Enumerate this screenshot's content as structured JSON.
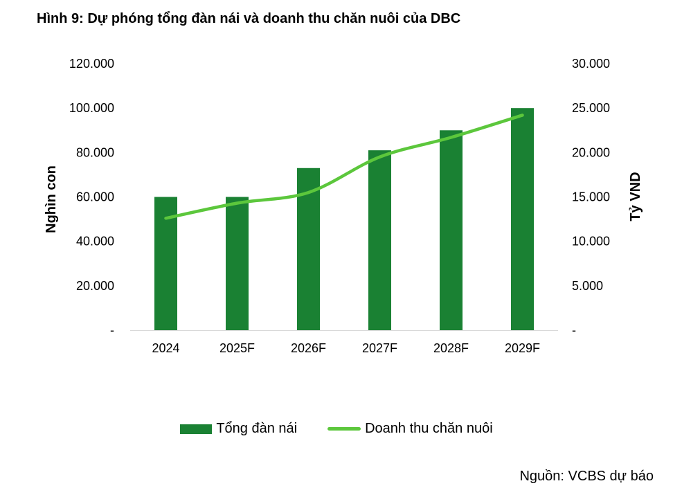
{
  "title": "Hình 9: Dự phóng tổng đàn nái và doanh thu chăn nuôi của DBC",
  "source": "Nguồn: VCBS dự báo",
  "colors": {
    "bar": "#1a8133",
    "line": "#5cc73c",
    "text": "#000000"
  },
  "chart_data": {
    "type": "bar",
    "categories": [
      "2024",
      "2025F",
      "2026F",
      "2027F",
      "2028F",
      "2029F"
    ],
    "series": [
      {
        "name": "Tổng đàn nái",
        "type": "bar",
        "axis": "left",
        "values": [
          60000,
          60000,
          73000,
          81000,
          90000,
          100000
        ]
      },
      {
        "name": "Doanh thu chăn nuôi",
        "type": "line",
        "axis": "right",
        "values": [
          12600,
          14300,
          15500,
          19500,
          21700,
          24200
        ]
      }
    ],
    "ylabel": "Nghìn con",
    "y2label": "Tỷ VND",
    "ylim": [
      0,
      120000
    ],
    "y2lim": [
      0,
      30000
    ],
    "yticks": [
      "-",
      "20.000",
      "40.000",
      "60.000",
      "80.000",
      "100.000",
      "120.000"
    ],
    "y2ticks": [
      "-",
      "5.000",
      "10.000",
      "15.000",
      "20.000",
      "25.000",
      "30.000"
    ],
    "grid": false,
    "legend_position": "bottom"
  }
}
